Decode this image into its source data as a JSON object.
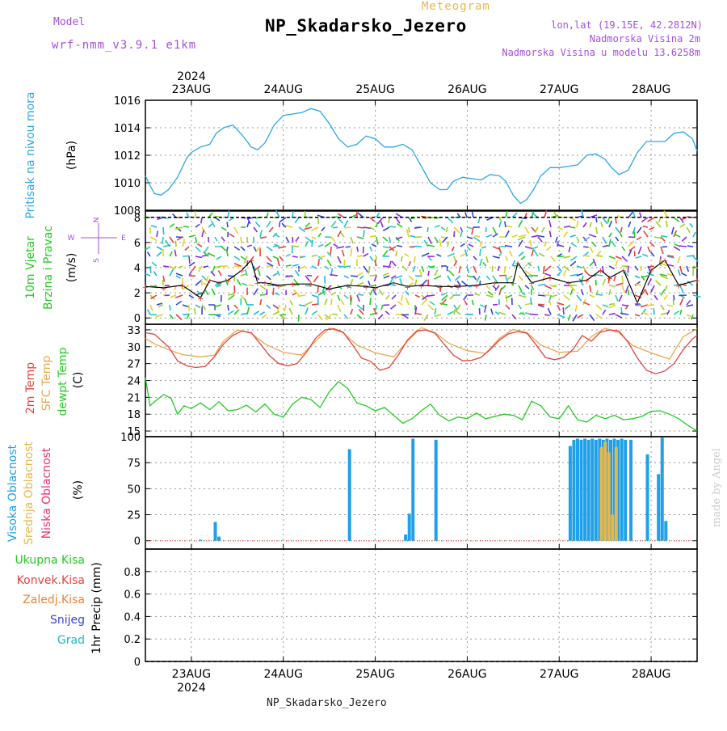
{
  "header": {
    "title": "NP_Skadarsko_Jezero",
    "meteogram_label": "Meteogram",
    "model_label": "Model",
    "model_name": "wrf-nmm_v3.9.1  e1km",
    "lonlat": "lon,lat (19.15E, 42.2812N)",
    "altitude": "Nadmorska Visina 2m",
    "model_altitude": "Nadmorska Visina u modelu 13.6258m"
  },
  "footer": {
    "station": "NP_Skadarsko_Jezero",
    "watermark": "made by Angel"
  },
  "colors": {
    "pressure": "#2aa7e8",
    "temp2m": "#e84040",
    "sfc_temp": "#e6a84c",
    "dewpoint": "#22cc22",
    "high_cloud": "#1fa0e8",
    "mid_cloud": "#e6b84c",
    "low_cloud": "#e8336b",
    "total_precip": "#22cc22",
    "conv_precip": "#e84040",
    "frz_precip": "#f08030",
    "snow": "#3344dd",
    "graupel": "#22b8b8",
    "wind_label": "#a64fd8"
  },
  "chart_data": [
    {
      "type": "line",
      "panel": "pressure",
      "ylabel": "Pritisak na nivou mora",
      "unit": "(hPa)",
      "ylim": [
        1008,
        1016
      ],
      "yticks": [
        1008,
        1010,
        1012,
        1014,
        1016
      ],
      "xlim": [
        22.5,
        28.5
      ],
      "x_ticks": [
        {
          "pos": 23,
          "label": "23AUG"
        },
        {
          "pos": 24,
          "label": "24AUG"
        },
        {
          "pos": 25,
          "label": "25AUG"
        },
        {
          "pos": 26,
          "label": "26AUG"
        },
        {
          "pos": 27,
          "label": "27AUG"
        },
        {
          "pos": 28,
          "label": "28AUG"
        }
      ],
      "year": "2024",
      "grid": true,
      "series": [
        {
          "color_key": "pressure",
          "x": [
            22.5,
            22.55,
            22.6,
            22.67,
            22.75,
            22.85,
            22.95,
            23.0,
            23.1,
            23.2,
            23.27,
            23.35,
            23.45,
            23.55,
            23.65,
            23.72,
            23.8,
            23.9,
            24.0,
            24.1,
            24.2,
            24.3,
            24.4,
            24.5,
            24.6,
            24.7,
            24.8,
            24.9,
            25.0,
            25.1,
            25.2,
            25.3,
            25.4,
            25.5,
            25.6,
            25.7,
            25.78,
            25.85,
            25.95,
            26.05,
            26.15,
            26.25,
            26.35,
            26.42,
            26.5,
            26.58,
            26.65,
            26.72,
            26.8,
            26.9,
            27.0,
            27.1,
            27.2,
            27.3,
            27.4,
            27.5,
            27.57,
            27.65,
            27.75,
            27.85,
            27.95,
            28.05,
            28.15,
            28.25,
            28.35,
            28.45,
            28.5
          ],
          "y": [
            1010.5,
            1009.8,
            1009.2,
            1009.1,
            1009.5,
            1010.4,
            1011.8,
            1012.2,
            1012.6,
            1012.8,
            1013.6,
            1014.0,
            1014.2,
            1013.5,
            1012.6,
            1012.4,
            1012.9,
            1014.2,
            1014.9,
            1015.0,
            1015.1,
            1015.4,
            1015.2,
            1014.3,
            1013.2,
            1012.6,
            1012.8,
            1013.4,
            1013.2,
            1012.6,
            1012.6,
            1012.8,
            1012.4,
            1011.2,
            1010.0,
            1009.5,
            1009.5,
            1010.1,
            1010.4,
            1010.3,
            1010.2,
            1010.6,
            1010.5,
            1010.1,
            1009.1,
            1008.5,
            1008.8,
            1009.5,
            1010.5,
            1011.1,
            1011.1,
            1011.2,
            1011.3,
            1012.0,
            1012.1,
            1011.7,
            1011.1,
            1010.6,
            1010.9,
            1012.2,
            1013.0,
            1013.0,
            1013.0,
            1013.6,
            1013.7,
            1013.2,
            1012.3
          ]
        }
      ]
    },
    {
      "type": "line",
      "panel": "wind",
      "ylabel": "10m Vjetar Brzina i Pravac",
      "unit": "(m/s)",
      "ylim": [
        -0.5,
        8.5
      ],
      "yticks": [
        0,
        2,
        4,
        6,
        8
      ],
      "xlim": [
        22.5,
        28.5
      ],
      "grid": true,
      "compass": {
        "north": "N",
        "south": "S",
        "west": "W",
        "east": "E"
      },
      "series": [
        {
          "name": "10m Vjetar",
          "x": [
            22.5,
            22.7,
            22.9,
            23.1,
            23.2,
            23.3,
            23.4,
            23.55,
            23.65,
            23.72,
            23.8,
            23.95,
            24.1,
            24.3,
            24.5,
            24.7,
            24.9,
            25.0,
            25.2,
            25.35,
            25.5,
            25.7,
            25.9,
            26.1,
            26.3,
            26.5,
            26.55,
            26.7,
            26.9,
            27.1,
            27.3,
            27.45,
            27.55,
            27.7,
            27.85,
            28.0,
            28.15,
            28.3,
            28.5
          ],
          "y": [
            2.5,
            2.4,
            2.6,
            1.6,
            3.0,
            2.8,
            3.0,
            3.8,
            4.6,
            2.8,
            2.8,
            2.6,
            2.7,
            2.7,
            2.3,
            2.6,
            2.5,
            2.4,
            2.8,
            2.5,
            2.6,
            2.5,
            2.5,
            2.6,
            2.8,
            2.8,
            4.4,
            2.8,
            3.2,
            2.8,
            3.0,
            3.8,
            3.2,
            3.8,
            1.2,
            3.8,
            4.6,
            2.6,
            3.0
          ]
        }
      ]
    },
    {
      "type": "line",
      "panel": "temperature",
      "unit": "(C)",
      "ylim": [
        14,
        34
      ],
      "yticks": [
        15,
        18,
        21,
        24,
        27,
        30,
        33
      ],
      "xlim": [
        22.5,
        28.5
      ],
      "grid": true,
      "series": [
        {
          "name": "2m Temp",
          "color_key": "temp2m",
          "x": [
            22.5,
            22.6,
            22.75,
            22.85,
            22.95,
            23.05,
            23.15,
            23.25,
            23.35,
            23.45,
            23.55,
            23.65,
            23.75,
            23.85,
            23.95,
            24.05,
            24.15,
            24.25,
            24.35,
            24.45,
            24.55,
            24.65,
            24.75,
            24.85,
            24.95,
            25.05,
            25.15,
            25.25,
            25.35,
            25.45,
            25.55,
            25.65,
            25.75,
            25.85,
            25.95,
            26.05,
            26.15,
            26.25,
            26.35,
            26.45,
            26.55,
            26.65,
            26.75,
            26.85,
            26.95,
            27.05,
            27.15,
            27.25,
            27.35,
            27.45,
            27.55,
            27.65,
            27.75,
            27.85,
            27.95,
            28.05,
            28.15,
            28.25,
            28.35,
            28.45,
            28.5
          ],
          "y": [
            32.5,
            32.2,
            30.0,
            27.5,
            26.6,
            26.3,
            26.5,
            28.2,
            30.5,
            32.0,
            32.8,
            32.5,
            30.5,
            28.4,
            27.0,
            26.6,
            27.0,
            29.0,
            31.5,
            33.0,
            33.2,
            32.6,
            30.4,
            28.0,
            27.4,
            25.8,
            26.3,
            28.5,
            31.2,
            32.8,
            33.0,
            32.4,
            30.4,
            28.5,
            27.5,
            27.6,
            28.1,
            29.5,
            31.2,
            32.3,
            32.7,
            32.4,
            30.3,
            28.1,
            27.7,
            28.1,
            29.5,
            32.0,
            31.0,
            32.6,
            33.0,
            32.8,
            30.8,
            28.0,
            25.8,
            25.2,
            25.7,
            27.0,
            29.5,
            31.4,
            32.0
          ]
        },
        {
          "name": "SFC Temp",
          "color_key": "sfc_temp",
          "x": [
            22.5,
            22.6,
            22.75,
            22.9,
            23.1,
            23.25,
            23.35,
            23.5,
            23.65,
            23.8,
            24.0,
            24.2,
            24.35,
            24.5,
            24.65,
            24.8,
            25.0,
            25.2,
            25.35,
            25.5,
            25.65,
            25.8,
            26.0,
            26.2,
            26.35,
            26.5,
            26.65,
            26.8,
            27.0,
            27.2,
            27.35,
            27.5,
            27.65,
            27.8,
            28.0,
            28.2,
            28.35,
            28.5
          ],
          "y": [
            31.5,
            30.5,
            29.5,
            28.6,
            28.2,
            28.5,
            31.0,
            33.0,
            32.4,
            30.5,
            29.0,
            28.5,
            31.0,
            33.3,
            32.5,
            30.3,
            28.9,
            28.2,
            31.0,
            33.4,
            32.5,
            30.6,
            29.3,
            28.8,
            31.5,
            33.1,
            32.5,
            30.3,
            29.0,
            29.2,
            31.8,
            33.3,
            32.5,
            30.2,
            28.9,
            27.8,
            31.8,
            33.2
          ]
        },
        {
          "name": "dewpt Temp",
          "color_key": "dewpoint",
          "x": [
            22.5,
            22.55,
            22.62,
            22.7,
            22.78,
            22.85,
            22.92,
            23.0,
            23.1,
            23.2,
            23.3,
            23.4,
            23.5,
            23.6,
            23.7,
            23.8,
            23.9,
            24.0,
            24.1,
            24.2,
            24.3,
            24.4,
            24.5,
            24.6,
            24.7,
            24.8,
            24.9,
            25.0,
            25.1,
            25.2,
            25.3,
            25.4,
            25.5,
            25.6,
            25.7,
            25.8,
            25.9,
            26.0,
            26.1,
            26.2,
            26.3,
            26.4,
            26.5,
            26.6,
            26.7,
            26.8,
            26.9,
            27.0,
            27.1,
            27.2,
            27.3,
            27.4,
            27.5,
            27.6,
            27.7,
            27.8,
            27.9,
            28.0,
            28.1,
            28.2,
            28.3,
            28.4,
            28.5
          ],
          "y": [
            24.5,
            19.5,
            20.5,
            21.5,
            20.8,
            18.0,
            19.5,
            19.0,
            20.0,
            18.8,
            20.2,
            18.6,
            18.8,
            19.6,
            18.4,
            19.8,
            18.0,
            17.5,
            19.8,
            21.0,
            20.6,
            19.2,
            22.0,
            23.8,
            22.6,
            20.0,
            19.5,
            18.6,
            19.2,
            17.8,
            16.4,
            17.2,
            18.6,
            19.8,
            17.8,
            16.8,
            17.5,
            17.2,
            18.2,
            17.2,
            17.6,
            18.0,
            17.8,
            17.0,
            20.3,
            19.5,
            17.5,
            17.2,
            19.5,
            17.0,
            16.6,
            17.8,
            17.2,
            17.8,
            17.0,
            17.2,
            17.6,
            18.5,
            18.6,
            18.0,
            17.2,
            16.0,
            15.0
          ]
        }
      ]
    },
    {
      "type": "bar",
      "panel": "cloud",
      "unit": "(%)",
      "ylim": [
        -8,
        100
      ],
      "yticks": [
        0,
        25,
        50,
        75,
        100
      ],
      "xlim": [
        22.5,
        28.5
      ],
      "grid": true,
      "series": [
        {
          "name": "Visoka Oblacnost",
          "color_key": "high_cloud",
          "x": [
            23.1,
            23.26,
            23.3,
            24.72,
            25.33,
            25.37,
            25.41,
            25.66,
            27.12,
            27.16,
            27.2,
            27.24,
            27.28,
            27.32,
            27.36,
            27.4,
            27.44,
            27.48,
            27.52,
            27.56,
            27.6,
            27.64,
            27.68,
            27.72,
            27.78,
            27.96,
            28.08,
            28.12,
            28.16
          ],
          "y": [
            1,
            18,
            4,
            88,
            6,
            26,
            98,
            97,
            91,
            97,
            98,
            97,
            98,
            97,
            98,
            97,
            98,
            97,
            98,
            97,
            98,
            97,
            98,
            97,
            97,
            83,
            64,
            99,
            19
          ]
        },
        {
          "name": "Srednja Oblacnost",
          "color_key": "mid_cloud",
          "x": [
            27.46,
            27.5,
            27.54,
            27.58,
            27.62
          ],
          "y": [
            90,
            95,
            85,
            25,
            90
          ]
        },
        {
          "name": "Niska Oblacnost",
          "color_key": "low_cloud",
          "x": [],
          "y": []
        }
      ]
    },
    {
      "type": "bar",
      "panel": "precipitation",
      "ylabel": "1hr Precip",
      "unit": "(mm)",
      "ylim": [
        0,
        1
      ],
      "yticks": [
        0,
        0.2,
        0.4,
        0.6,
        0.8
      ],
      "xlim": [
        22.5,
        28.5
      ],
      "grid": true,
      "series": [
        {
          "name": "Ukupna Kisa",
          "color_key": "total_precip",
          "values": []
        },
        {
          "name": "Konvek.Kisa",
          "color_key": "conv_precip",
          "values": []
        },
        {
          "name": "Zaledj.Kisa",
          "color_key": "frz_precip",
          "values": []
        },
        {
          "name": "Snijeg",
          "color_key": "snow",
          "values": []
        },
        {
          "name": "Grad",
          "color_key": "graupel",
          "values": []
        }
      ]
    }
  ]
}
